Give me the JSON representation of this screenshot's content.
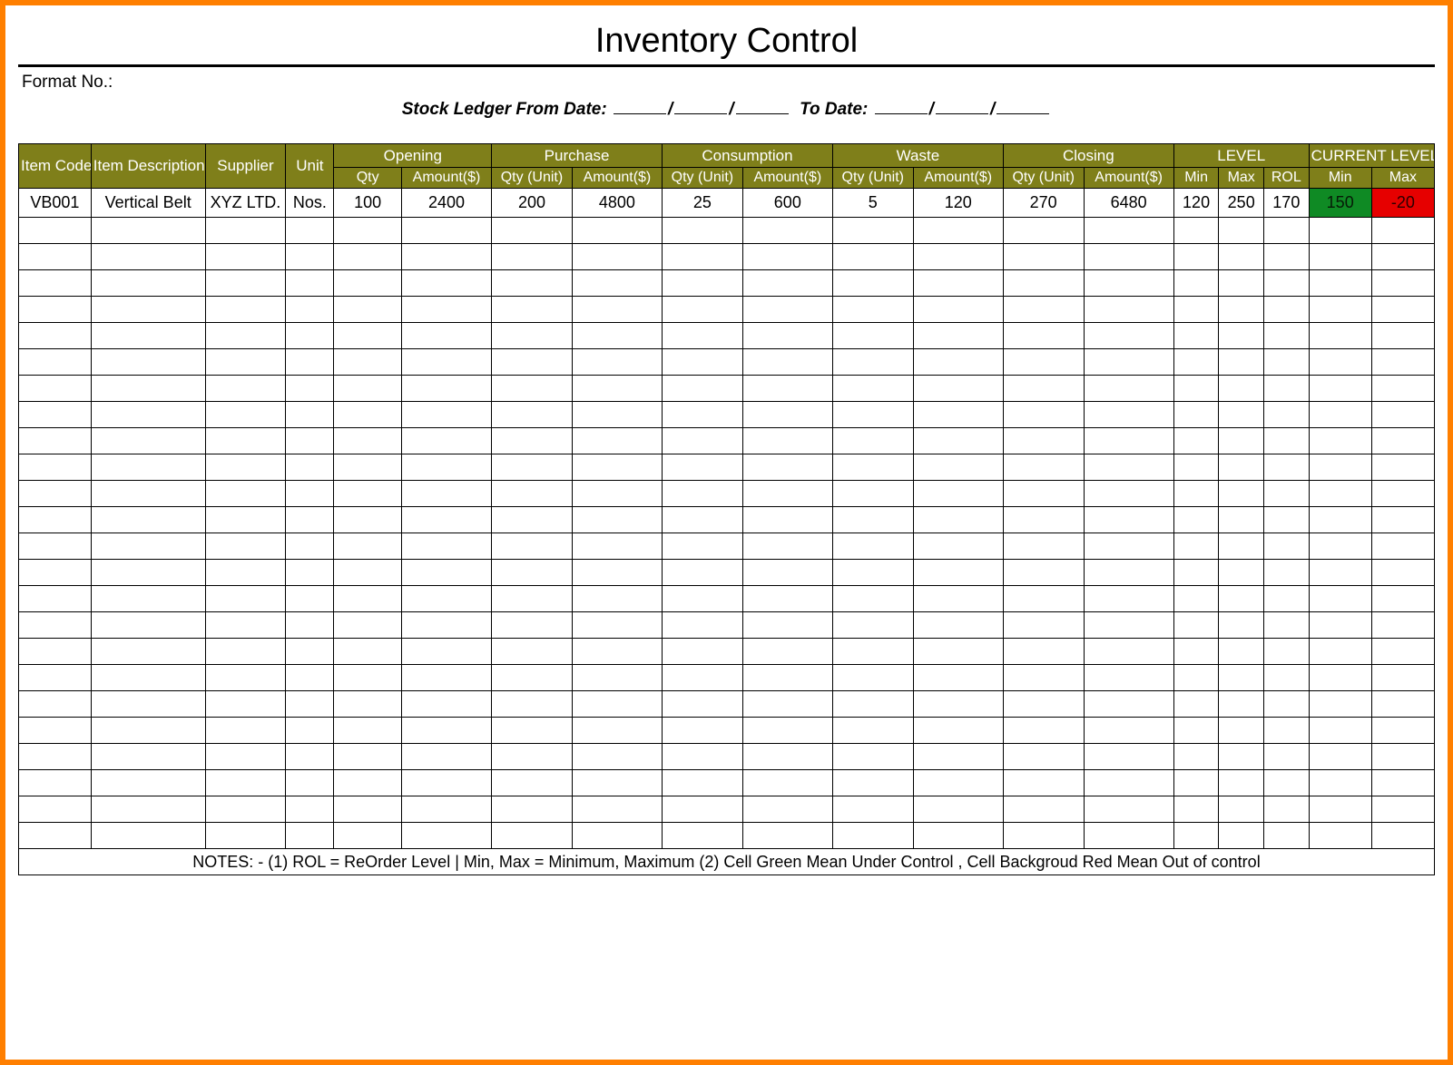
{
  "page": {
    "title": "Inventory Control",
    "format_label": "Format No.:",
    "ledger_prefix": "Stock Ledger From Date:",
    "to_date_label": "To Date:",
    "notes": "NOTES: - (1) ROL = ReOrder Level | Min, Max = Minimum, Maximum     (2) Cell Green Mean Under Control , Cell Backgroud Red Mean Out of control"
  },
  "colors": {
    "frame_border": "#ff7f00",
    "header_bg": "#7f7f1a",
    "header_fg": "#ffffff",
    "note_bg": "#c9f2f2",
    "status_green": "#0f8a24",
    "status_red": "#e60000",
    "grid_border": "#000000",
    "page_bg": "#ffffff"
  },
  "typography": {
    "title_fontsize": 38,
    "header_fontsize": 17,
    "subheader_fontsize": 16,
    "body_fontsize": 18,
    "notes_fontsize": 15,
    "font_family": "Arial"
  },
  "table": {
    "type": "table",
    "empty_rows": 24,
    "col_widths_pct": [
      4.5,
      7.1,
      5.0,
      3.0,
      4.2,
      5.6,
      5.0,
      5.6,
      5.0,
      5.6,
      5.0,
      5.6,
      5.0,
      5.6,
      2.8,
      2.8,
      2.8,
      3.9,
      3.9
    ],
    "headers_top": {
      "item_code": "Item Code",
      "item_desc": "Item Description",
      "supplier": "Supplier",
      "unit": "Unit",
      "opening": "Opening",
      "purchase": "Purchase",
      "consumption": "Consumption",
      "waste": "Waste",
      "closing": "Closing",
      "level": "LEVEL",
      "current_level": "CURRENT LEVEL"
    },
    "headers_sub": {
      "qty": "Qty",
      "amount": "Amount($)",
      "qty_unit": "Qty (Unit)",
      "min": "Min",
      "max": "Max",
      "rol": "ROL"
    },
    "rows": [
      {
        "item_code": "VB001",
        "item_desc": "Vertical Belt",
        "supplier": "XYZ LTD.",
        "unit": "Nos.",
        "opening_qty": "100",
        "opening_amt": "2400",
        "purchase_qty": "200",
        "purchase_amt": "4800",
        "consumption_qty": "25",
        "consumption_amt": "600",
        "waste_qty": "5",
        "waste_amt": "120",
        "closing_qty": "270",
        "closing_amt": "6480",
        "level_min": "120",
        "level_max": "250",
        "level_rol": "170",
        "current_min": "150",
        "current_max": "-20",
        "current_min_status": "green",
        "current_max_status": "red"
      }
    ]
  }
}
